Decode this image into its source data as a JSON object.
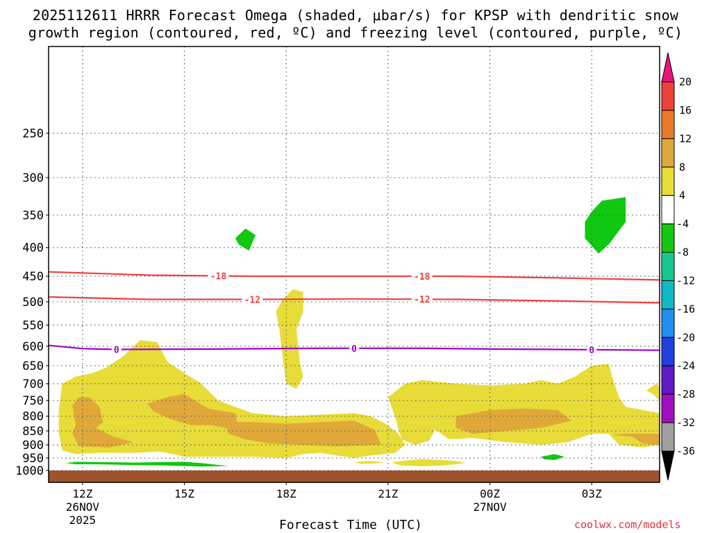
{
  "title": {
    "line1": "2025112611 HRRR Forecast Omega (shaded, μbar/s) for KPSP with dendritic snow",
    "line2": "growth region (contoured, red, ºC) and freezing level (contoured, purple, ºC)"
  },
  "xlabel": "Forecast Time (UTC)",
  "credit": "coolwx.com/models",
  "chart_data": {
    "type": "heatmap",
    "title": "2025112611 HRRR Forecast Omega (shaded, μbar/s) for KPSP with dendritic snow growth region (contoured, red, ºC) and freezing level (contoured, purple, ºC)",
    "xlabel": "Forecast Time (UTC)",
    "ylabel": "",
    "x_hours": [
      11,
      29
    ],
    "x_ticks": [
      {
        "hour": 12,
        "label": "12Z",
        "sub1": "26NOV",
        "sub2": "2025"
      },
      {
        "hour": 15,
        "label": "15Z",
        "sub1": "",
        "sub2": ""
      },
      {
        "hour": 18,
        "label": "18Z",
        "sub1": "",
        "sub2": ""
      },
      {
        "hour": 21,
        "label": "21Z",
        "sub1": "",
        "sub2": ""
      },
      {
        "hour": 24,
        "label": "00Z",
        "sub1": "27NOV",
        "sub2": ""
      },
      {
        "hour": 27,
        "label": "03Z",
        "sub1": "",
        "sub2": ""
      }
    ],
    "y_scale": "log-pressure",
    "y_range_hPa": [
      1050,
      175
    ],
    "y_ticks": [
      250,
      300,
      350,
      400,
      450,
      500,
      550,
      600,
      650,
      700,
      750,
      800,
      850,
      900,
      950,
      1000
    ],
    "grid": true,
    "colorbar": {
      "levels": [
        20,
        16,
        12,
        8,
        4,
        -4,
        -8,
        -12,
        -16,
        -20,
        -24,
        -28,
        -32,
        -36
      ],
      "colors": [
        "#e8147c",
        "#f0403c",
        "#e87a2a",
        "#e0a838",
        "#e8dc38",
        "#ffffff",
        "#10c810",
        "#14c890",
        "#10b8c8",
        "#2090f0",
        "#2040e0",
        "#6018c8",
        "#a010c0",
        "#a0a0a0",
        "#000000"
      ]
    },
    "omega_regions": [
      {
        "label": "+4 to +8",
        "color": "#e8dc38",
        "polygons": [
          [
            [
              11.4,
              700
            ],
            [
              11.8,
              680
            ],
            [
              12.3,
              670
            ],
            [
              12.7,
              655
            ],
            [
              13.2,
              625
            ],
            [
              13.7,
              585
            ],
            [
              14.2,
              590
            ],
            [
              14.5,
              640
            ],
            [
              15,
              670
            ],
            [
              15.5,
              700
            ],
            [
              16,
              750
            ],
            [
              17,
              790
            ],
            [
              18,
              800
            ],
            [
              19,
              795
            ],
            [
              20,
              790
            ],
            [
              20.5,
              800
            ],
            [
              21,
              830
            ],
            [
              21.3,
              860
            ],
            [
              21.5,
              900
            ],
            [
              21.2,
              930
            ],
            [
              20.5,
              940
            ],
            [
              20,
              950
            ],
            [
              19.5,
              940
            ],
            [
              19,
              930
            ],
            [
              18.5,
              935
            ],
            [
              18,
              950
            ],
            [
              17,
              945
            ],
            [
              16,
              945
            ],
            [
              15,
              945
            ],
            [
              14.3,
              925
            ],
            [
              13.5,
              930
            ],
            [
              12.5,
              930
            ],
            [
              11.8,
              935
            ],
            [
              11.4,
              920
            ],
            [
              11.3,
              860
            ],
            [
              11.3,
              780
            ]
          ],
          [
            [
              21,
              740
            ],
            [
              21.5,
              700
            ],
            [
              22,
              690
            ],
            [
              23,
              700
            ],
            [
              24,
              705
            ],
            [
              25,
              700
            ],
            [
              25.5,
              690
            ],
            [
              26,
              700
            ],
            [
              26.5,
              680
            ],
            [
              27,
              650
            ],
            [
              27.5,
              645
            ],
            [
              27.6,
              680
            ],
            [
              27.8,
              740
            ],
            [
              28,
              770
            ],
            [
              29,
              790
            ],
            [
              29,
              900
            ],
            [
              28.5,
              910
            ],
            [
              27.8,
              900
            ],
            [
              27.5,
              860
            ],
            [
              27,
              860
            ],
            [
              26.3,
              890
            ],
            [
              25.5,
              900
            ],
            [
              24.5,
              890
            ],
            [
              23.5,
              875
            ],
            [
              22.8,
              880
            ],
            [
              22.4,
              845
            ],
            [
              22.2,
              885
            ],
            [
              21.8,
              900
            ],
            [
              21.4,
              880
            ],
            [
              21.2,
              800
            ]
          ],
          [
            [
              17.7,
              520
            ],
            [
              17.9,
              495
            ],
            [
              18.2,
              475
            ],
            [
              18.5,
              480
            ],
            [
              18.5,
              520
            ],
            [
              18.3,
              560
            ],
            [
              18.4,
              640
            ],
            [
              18.5,
              680
            ],
            [
              18.3,
              715
            ],
            [
              18.0,
              700
            ],
            [
              17.9,
              630
            ],
            [
              17.8,
              560
            ]
          ],
          [
            [
              28.9,
              700
            ],
            [
              29,
              710
            ],
            [
              29,
              750
            ],
            [
              28.8,
              730
            ],
            [
              28.6,
              720
            ]
          ],
          [
            [
              20,
              966
            ],
            [
              20.5,
              962
            ],
            [
              20.9,
              968
            ],
            [
              20.6,
              972
            ],
            [
              20.2,
              973
            ]
          ],
          [
            [
              21.1,
              968
            ],
            [
              21.5,
              960
            ],
            [
              22,
              955
            ],
            [
              22.5,
              957
            ],
            [
              23,
              962
            ],
            [
              23.3,
              970
            ],
            [
              22.6,
              980
            ],
            [
              22,
              983
            ],
            [
              21.4,
              980
            ]
          ]
        ]
      },
      {
        "label": "+8 to +12",
        "color": "#e0a838",
        "polygons": [
          [
            [
              11.7,
              765
            ],
            [
              11.9,
              740
            ],
            [
              12.2,
              740
            ],
            [
              12.5,
              770
            ],
            [
              12.6,
              820
            ],
            [
              12.4,
              840
            ],
            [
              12.9,
              870
            ],
            [
              13.5,
              890
            ],
            [
              12.8,
              910
            ],
            [
              11.9,
              905
            ],
            [
              11.7,
              860
            ],
            [
              11.8,
              830
            ]
          ],
          [
            [
              13.9,
              760
            ],
            [
              14.5,
              740
            ],
            [
              15,
              730
            ],
            [
              15.7,
              775
            ],
            [
              16.5,
              790
            ],
            [
              16.6,
              850
            ],
            [
              15.8,
              830
            ],
            [
              15.2,
              830
            ],
            [
              14.6,
              810
            ],
            [
              14.1,
              785
            ]
          ],
          [
            [
              16.2,
              820
            ],
            [
              17,
              820
            ],
            [
              18,
              825
            ],
            [
              19,
              820
            ],
            [
              20,
              815
            ],
            [
              20.6,
              845
            ],
            [
              20.8,
              900
            ],
            [
              19.5,
              905
            ],
            [
              18.5,
              900
            ],
            [
              17.5,
              895
            ],
            [
              16.8,
              880
            ],
            [
              16.3,
              860
            ]
          ],
          [
            [
              23,
              800
            ],
            [
              24,
              780
            ],
            [
              25,
              775
            ],
            [
              26,
              780
            ],
            [
              26.4,
              815
            ],
            [
              25.5,
              840
            ],
            [
              24.5,
              850
            ],
            [
              23.5,
              860
            ],
            [
              23,
              840
            ]
          ],
          [
            [
              27.6,
              865
            ],
            [
              28,
              860
            ],
            [
              29,
              860
            ],
            [
              29,
              900
            ],
            [
              28.5,
              895
            ],
            [
              28.2,
              870
            ]
          ]
        ]
      },
      {
        "label": "-4 to -8",
        "color": "#10c810",
        "polygons": [
          [
            [
              27.3,
              330
            ],
            [
              28,
              325
            ],
            [
              28,
              360
            ],
            [
              27.5,
              395
            ],
            [
              27.2,
              410
            ],
            [
              26.8,
              385
            ],
            [
              26.8,
              360
            ],
            [
              27,
              345
            ]
          ],
          [
            [
              16.5,
              385
            ],
            [
              16.8,
              370
            ],
            [
              17.1,
              380
            ],
            [
              16.9,
              405
            ],
            [
              16.6,
              395
            ]
          ],
          [
            [
              11.5,
              970
            ],
            [
              11.8,
              965
            ],
            [
              12.5,
              966
            ],
            [
              13.5,
              968
            ],
            [
              14.5,
              966
            ],
            [
              15,
              965
            ],
            [
              15.5,
              970
            ],
            [
              16.3,
              982
            ],
            [
              15.5,
              984
            ],
            [
              14.5,
              980
            ],
            [
              13.5,
              978
            ],
            [
              12.5,
              975
            ],
            [
              11.8,
              975
            ]
          ],
          [
            [
              25.5,
              945
            ],
            [
              25.9,
              935
            ],
            [
              26.2,
              945
            ],
            [
              25.9,
              958
            ],
            [
              25.6,
              955
            ]
          ]
        ]
      }
    ],
    "ground": {
      "color": "#a0522d",
      "from_hPa": 1000
    },
    "contours": [
      {
        "name": "-18 °C isotherm",
        "label": "-18",
        "color": "#f04040",
        "points": [
          [
            11,
            442
          ],
          [
            14,
            448
          ],
          [
            17,
            450
          ],
          [
            20,
            450
          ],
          [
            23,
            450
          ],
          [
            26,
            453
          ],
          [
            29,
            457
          ]
        ],
        "label_hours": [
          16,
          22
        ]
      },
      {
        "name": "-12 °C isotherm",
        "label": "-12",
        "color": "#f04040",
        "points": [
          [
            11,
            490
          ],
          [
            14,
            495
          ],
          [
            17,
            495
          ],
          [
            20,
            494
          ],
          [
            23,
            495
          ],
          [
            26,
            498
          ],
          [
            29,
            502
          ]
        ],
        "label_hours": [
          17,
          22
        ]
      },
      {
        "name": "0 °C freezing level",
        "label": "0",
        "color": "#a000c8",
        "points": [
          [
            11,
            598
          ],
          [
            12,
            606
          ],
          [
            13,
            608
          ],
          [
            16,
            607
          ],
          [
            19,
            605
          ],
          [
            22,
            605
          ],
          [
            24,
            607
          ],
          [
            26,
            608
          ],
          [
            29,
            610
          ]
        ],
        "label_hours": [
          13,
          20,
          27
        ]
      }
    ]
  }
}
